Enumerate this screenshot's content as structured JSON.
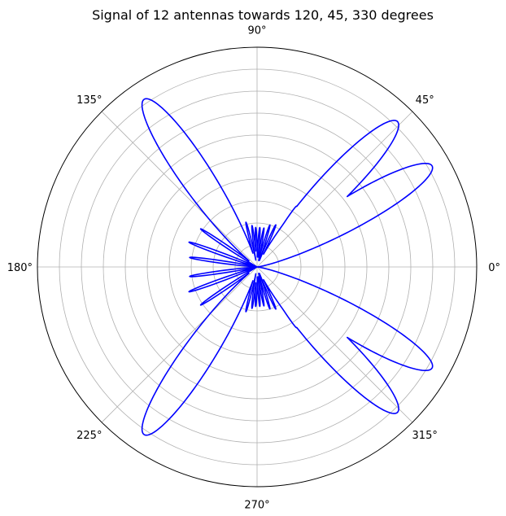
{
  "chart_data": {
    "type": "polar-line",
    "title": "Signal of 12 antennas towards 120, 45, 330 degrees",
    "angle_ticks": [
      "0°",
      "45°",
      "90°",
      "135°",
      "180°",
      "225°",
      "270°",
      "315°"
    ],
    "angle_tick_values_deg": [
      0,
      45,
      90,
      135,
      180,
      225,
      270,
      315
    ],
    "radial_gridlines": 9,
    "radial_tick_labels": [],
    "grid": true,
    "series": [
      {
        "color": "#0000ff",
        "curve_type": "symmetric multi-lobe antenna pattern",
        "main_lobes": [
          {
            "angle_deg": 30,
            "radius": 0.92
          },
          {
            "angle_deg": 46,
            "radius": 0.92
          },
          {
            "angle_deg": 124,
            "radius": 0.92
          }
        ],
        "side_lobes": [
          {
            "angle_deg": 57,
            "radius": 0.33
          },
          {
            "angle_deg": 66,
            "radius": 0.21
          },
          {
            "angle_deg": 73,
            "radius": 0.2
          },
          {
            "angle_deg": 80,
            "radius": 0.18
          },
          {
            "angle_deg": 86,
            "radius": 0.18
          },
          {
            "angle_deg": 92,
            "radius": 0.18
          },
          {
            "angle_deg": 97,
            "radius": 0.19
          },
          {
            "angle_deg": 104,
            "radius": 0.21
          },
          {
            "angle_deg": 146,
            "radius": 0.31
          },
          {
            "angle_deg": 160,
            "radius": 0.33
          },
          {
            "angle_deg": 172,
            "radius": 0.31
          }
        ],
        "null_radius": 0.31,
        "symmetry": "mirrored about 0°-180° axis"
      }
    ]
  }
}
